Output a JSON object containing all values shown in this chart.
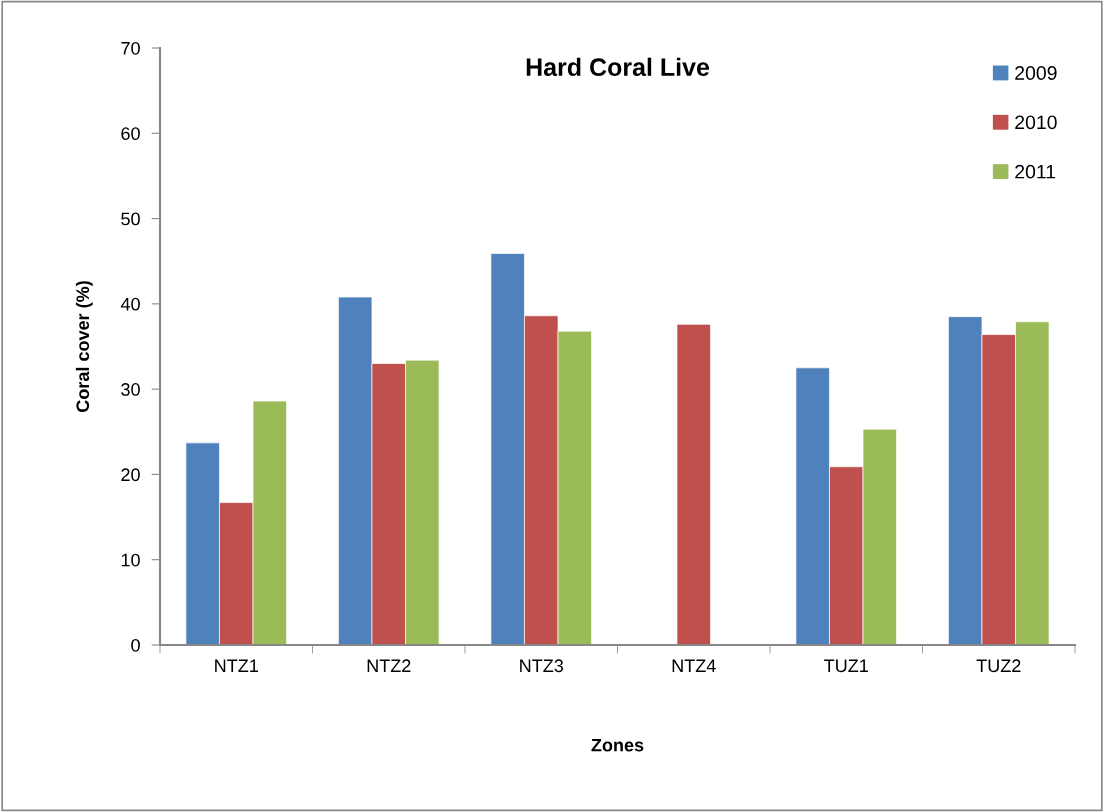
{
  "chart_data": {
    "type": "bar",
    "title": "Hard Coral Live",
    "xlabel": "Zones",
    "ylabel": "Coral cover (%)",
    "categories": [
      "NTZ1",
      "NTZ2",
      "NTZ3",
      "NTZ4",
      "TUZ1",
      "TUZ2"
    ],
    "series": [
      {
        "name": "2009",
        "color": "#4f81bd",
        "values": [
          23.7,
          40.8,
          45.9,
          null,
          32.5,
          38.5
        ]
      },
      {
        "name": "2010",
        "color": "#c0504d",
        "values": [
          16.7,
          33.0,
          38.6,
          37.6,
          20.9,
          36.4
        ]
      },
      {
        "name": "2011",
        "color": "#9bbb59",
        "values": [
          28.6,
          33.4,
          36.8,
          null,
          25.3,
          37.9
        ]
      }
    ],
    "ylim": [
      0,
      70
    ],
    "yticks": [
      0,
      10,
      20,
      30,
      40,
      50,
      60,
      70
    ],
    "grid": false,
    "legend": "top right"
  }
}
